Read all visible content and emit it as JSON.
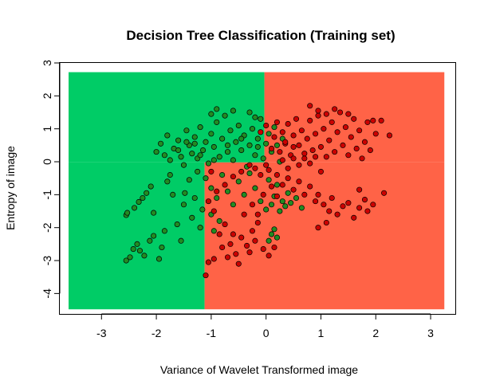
{
  "chart_data": {
    "type": "scatter",
    "title": "Decision Tree Classification (Training set)",
    "xlabel": "Variance of Wavelet Transformed image",
    "ylabel": "Entropy of image",
    "xlim": [
      -3.76,
      3.45
    ],
    "ylim": [
      -4.62,
      3.0
    ],
    "xticks": [
      -3,
      -2,
      -1,
      0,
      1,
      2,
      3
    ],
    "yticks": [
      -4,
      -3,
      -2,
      -1,
      0,
      1,
      2,
      3
    ],
    "grid": false,
    "legend": "none",
    "colors": {
      "region_class_0": "#00cc66",
      "region_class_1": "#ff6347",
      "point_class_0": "#228b22",
      "point_class_1": "#cc0000",
      "point_outline": "#000000"
    },
    "decision_regions": [
      {
        "class": 0,
        "x": [
          -3.6,
          -0.03
        ],
        "y": [
          -0.02,
          2.72
        ]
      },
      {
        "class": 0,
        "x": [
          -3.6,
          -1.12
        ],
        "y": [
          -4.48,
          -0.02
        ]
      },
      {
        "class": 1,
        "x": [
          -0.03,
          3.25
        ],
        "y": [
          -0.02,
          2.72
        ]
      },
      {
        "class": 1,
        "x": [
          -1.12,
          3.25
        ],
        "y": [
          -4.48,
          -0.02
        ]
      }
    ],
    "series": [
      {
        "class": 0,
        "points": [
          [
            -2.55,
            -1.62
          ],
          [
            -2.53,
            -1.55
          ],
          [
            -2.4,
            -1.4
          ],
          [
            -2.32,
            -1.22
          ],
          [
            -2.25,
            -1.1
          ],
          [
            -2.18,
            -0.95
          ],
          [
            -2.1,
            -0.75
          ],
          [
            -2.05,
            -1.55
          ],
          [
            -2.55,
            -3.0
          ],
          [
            -2.48,
            -2.9
          ],
          [
            -2.42,
            -2.65
          ],
          [
            -2.35,
            -2.5
          ],
          [
            -2.3,
            -2.7
          ],
          [
            -2.22,
            -2.85
          ],
          [
            -2.12,
            -2.4
          ],
          [
            -2.05,
            -2.25
          ],
          [
            -1.95,
            -2.95
          ],
          [
            -1.9,
            -2.6
          ],
          [
            -1.85,
            -2.1
          ],
          [
            -1.8,
            -0.6
          ],
          [
            -1.75,
            -0.4
          ],
          [
            -1.7,
            -1.0
          ],
          [
            -1.62,
            -1.9
          ],
          [
            -1.55,
            -2.4
          ],
          [
            -1.5,
            -1.3
          ],
          [
            -1.48,
            -0.95
          ],
          [
            -1.4,
            -0.55
          ],
          [
            -1.35,
            -1.7
          ],
          [
            -1.3,
            -1.1
          ],
          [
            -1.25,
            -0.3
          ],
          [
            -1.2,
            -2.0
          ],
          [
            -1.16,
            -1.45
          ],
          [
            -2.0,
            0.3
          ],
          [
            -1.92,
            0.55
          ],
          [
            -1.85,
            0.2
          ],
          [
            -1.8,
            0.8
          ],
          [
            -1.75,
            0.05
          ],
          [
            -1.68,
            0.4
          ],
          [
            -1.6,
            0.65
          ],
          [
            -1.55,
            0.15
          ],
          [
            -1.5,
            -0.1
          ],
          [
            -1.45,
            0.95
          ],
          [
            -1.4,
            0.5
          ],
          [
            -1.35,
            0.25
          ],
          [
            -1.3,
            0.75
          ],
          [
            -1.25,
            0.1
          ],
          [
            -1.2,
            1.05
          ],
          [
            -1.15,
            0.35
          ],
          [
            -1.1,
            0.6
          ],
          [
            -1.05,
            -0.05
          ],
          [
            -1.0,
            0.85
          ],
          [
            -0.95,
            0.45
          ],
          [
            -0.9,
            1.2
          ],
          [
            -0.85,
            0.15
          ],
          [
            -0.8,
            0.7
          ],
          [
            -0.75,
            1.4
          ],
          [
            -0.7,
            0.3
          ],
          [
            -0.65,
            0.95
          ],
          [
            -0.6,
            0.05
          ],
          [
            -0.55,
            0.6
          ],
          [
            -0.5,
            1.1
          ],
          [
            -0.45,
            0.35
          ],
          [
            -0.4,
            0.8
          ],
          [
            -0.35,
            -0.15
          ],
          [
            -0.3,
            0.5
          ],
          [
            -0.25,
            1.0
          ],
          [
            -0.2,
            0.2
          ],
          [
            -0.15,
            0.7
          ],
          [
            -0.1,
            1.3
          ],
          [
            -0.05,
            0.1
          ],
          [
            0.0,
            0.55
          ],
          [
            0.05,
            0.85
          ],
          [
            0.1,
            0.3
          ],
          [
            0.15,
            1.05
          ],
          [
            0.2,
            0.5
          ],
          [
            0.25,
            0.0
          ],
          [
            0.3,
            0.7
          ],
          [
            -1.0,
            1.45
          ],
          [
            -0.9,
            1.6
          ],
          [
            -0.6,
            1.55
          ],
          [
            -0.3,
            1.5
          ],
          [
            -0.2,
            1.35
          ],
          [
            -1.1,
            -0.5
          ],
          [
            -1.0,
            -0.8
          ],
          [
            -0.9,
            -1.1
          ],
          [
            -0.8,
            -0.4
          ],
          [
            -0.7,
            -0.9
          ],
          [
            -0.6,
            -1.3
          ],
          [
            -0.5,
            -0.6
          ],
          [
            -0.4,
            -1.0
          ],
          [
            -0.3,
            -0.35
          ],
          [
            -0.2,
            -0.8
          ],
          [
            -0.1,
            -1.2
          ],
          [
            0.0,
            -1.45
          ],
          [
            0.05,
            -0.55
          ],
          [
            0.1,
            -1.3
          ],
          [
            0.15,
            -1.05
          ],
          [
            0.2,
            -0.7
          ],
          [
            0.25,
            -1.5
          ],
          [
            0.3,
            -1.2
          ],
          [
            0.35,
            -1.35
          ],
          [
            0.4,
            -0.95
          ],
          [
            0.45,
            -1.25
          ],
          [
            0.55,
            -1.1
          ],
          [
            0.65,
            -1.4
          ],
          [
            0.1,
            -2.2
          ],
          [
            0.05,
            -2.4
          ],
          [
            0.15,
            -2.05
          ],
          [
            0.2,
            -2.3
          ],
          [
            -1.0,
            -1.6
          ],
          [
            -0.95,
            -2.1
          ],
          [
            -0.85,
            -1.8
          ],
          [
            -1.3,
            0.55
          ],
          [
            -1.2,
            0.2
          ],
          [
            -0.95,
            0.05
          ],
          [
            -0.7,
            0.5
          ],
          [
            -0.45,
            0.7
          ],
          [
            -0.15,
            0.45
          ],
          [
            -1.6,
            0.35
          ],
          [
            -1.45,
            0.6
          ]
        ]
      },
      {
        "class": 1,
        "points": [
          [
            -0.1,
            0.9
          ],
          [
            0.0,
            1.1
          ],
          [
            0.1,
            0.4
          ],
          [
            0.15,
            0.75
          ],
          [
            0.2,
            1.2
          ],
          [
            0.25,
            0.3
          ],
          [
            0.3,
            0.9
          ],
          [
            0.35,
            0.55
          ],
          [
            0.4,
            1.15
          ],
          [
            0.45,
            0.2
          ],
          [
            0.5,
            0.8
          ],
          [
            0.55,
            1.3
          ],
          [
            0.6,
            0.5
          ],
          [
            0.65,
            0.95
          ],
          [
            0.7,
            0.1
          ],
          [
            0.75,
            0.7
          ],
          [
            0.8,
            1.25
          ],
          [
            0.85,
            0.35
          ],
          [
            0.9,
            0.85
          ],
          [
            0.95,
            1.4
          ],
          [
            1.0,
            0.45
          ],
          [
            1.05,
            1.0
          ],
          [
            1.1,
            0.15
          ],
          [
            1.15,
            0.65
          ],
          [
            1.2,
            1.2
          ],
          [
            1.25,
            0.3
          ],
          [
            1.3,
            0.9
          ],
          [
            1.35,
            1.5
          ],
          [
            1.4,
            0.5
          ],
          [
            1.45,
            1.05
          ],
          [
            1.5,
            0.2
          ],
          [
            1.55,
            0.75
          ],
          [
            1.6,
            1.3
          ],
          [
            1.65,
            0.4
          ],
          [
            1.7,
            0.95
          ],
          [
            1.75,
            0.1
          ],
          [
            1.8,
            0.6
          ],
          [
            1.85,
            1.2
          ],
          [
            1.9,
            0.35
          ],
          [
            1.95,
            1.25
          ],
          [
            2.0,
            0.85
          ],
          [
            2.1,
            1.25
          ],
          [
            2.25,
            0.8
          ],
          [
            0.95,
            1.55
          ],
          [
            1.1,
            1.45
          ],
          [
            1.25,
            1.6
          ],
          [
            1.5,
            1.45
          ],
          [
            0.8,
            1.7
          ],
          [
            0.3,
            0.05
          ],
          [
            0.4,
            -0.2
          ],
          [
            0.5,
            0.1
          ],
          [
            0.6,
            -0.1
          ],
          [
            0.7,
            0.25
          ],
          [
            0.8,
            -0.05
          ],
          [
            0.9,
            0.15
          ],
          [
            1.0,
            -0.3
          ],
          [
            0.2,
            -0.4
          ],
          [
            0.3,
            -0.7
          ],
          [
            0.4,
            -0.5
          ],
          [
            0.5,
            -0.85
          ],
          [
            0.6,
            -0.6
          ],
          [
            0.7,
            -1.0
          ],
          [
            0.8,
            -0.75
          ],
          [
            0.9,
            -1.2
          ],
          [
            0.95,
            -1.0
          ],
          [
            1.05,
            -1.3
          ],
          [
            1.15,
            -1.5
          ],
          [
            1.2,
            -1.1
          ],
          [
            1.3,
            -1.6
          ],
          [
            1.4,
            -1.35
          ],
          [
            1.5,
            -1.25
          ],
          [
            1.6,
            -1.7
          ],
          [
            1.7,
            -1.4
          ],
          [
            1.8,
            -1.15
          ],
          [
            1.85,
            -1.5
          ],
          [
            1.7,
            -0.85
          ],
          [
            2.15,
            -0.95
          ],
          [
            1.95,
            -1.3
          ],
          [
            1.1,
            -1.85
          ],
          [
            0.95,
            -2.0
          ],
          [
            -0.2,
            -0.2
          ],
          [
            -0.1,
            -0.4
          ],
          [
            0.0,
            -0.1
          ],
          [
            0.05,
            -0.25
          ],
          [
            -0.3,
            -0.1
          ],
          [
            -0.45,
            -0.3
          ],
          [
            -0.6,
            -0.45
          ],
          [
            -0.75,
            -0.7
          ],
          [
            -0.9,
            -0.9
          ],
          [
            -1.0,
            -0.3
          ],
          [
            -1.05,
            -1.2
          ],
          [
            -0.95,
            -1.5
          ],
          [
            -0.85,
            -2.2
          ],
          [
            -0.75,
            -1.9
          ],
          [
            -0.65,
            -2.5
          ],
          [
            -0.55,
            -2.8
          ],
          [
            -0.45,
            -2.3
          ],
          [
            -0.35,
            -2.55
          ],
          [
            -0.25,
            -2.1
          ],
          [
            -0.15,
            -1.85
          ],
          [
            -0.05,
            -2.65
          ],
          [
            0.05,
            -2.85
          ],
          [
            -0.95,
            -2.95
          ],
          [
            -1.05,
            -3.05
          ],
          [
            -1.1,
            -3.45
          ],
          [
            -0.7,
            -2.9
          ],
          [
            -0.5,
            -3.1
          ],
          [
            -0.3,
            -2.75
          ],
          [
            -0.2,
            -2.4
          ],
          [
            0.15,
            -2.6
          ],
          [
            -0.8,
            -2.6
          ],
          [
            -0.6,
            -2.2
          ],
          [
            -0.4,
            -1.6
          ],
          [
            -0.25,
            -1.3
          ],
          [
            -0.15,
            -1.6
          ],
          [
            -0.05,
            -1.0
          ],
          [
            0.1,
            -0.75
          ],
          [
            0.2,
            -1.05
          ],
          [
            0.35,
            0.6
          ],
          [
            0.5,
            0.45
          ]
        ]
      }
    ]
  }
}
